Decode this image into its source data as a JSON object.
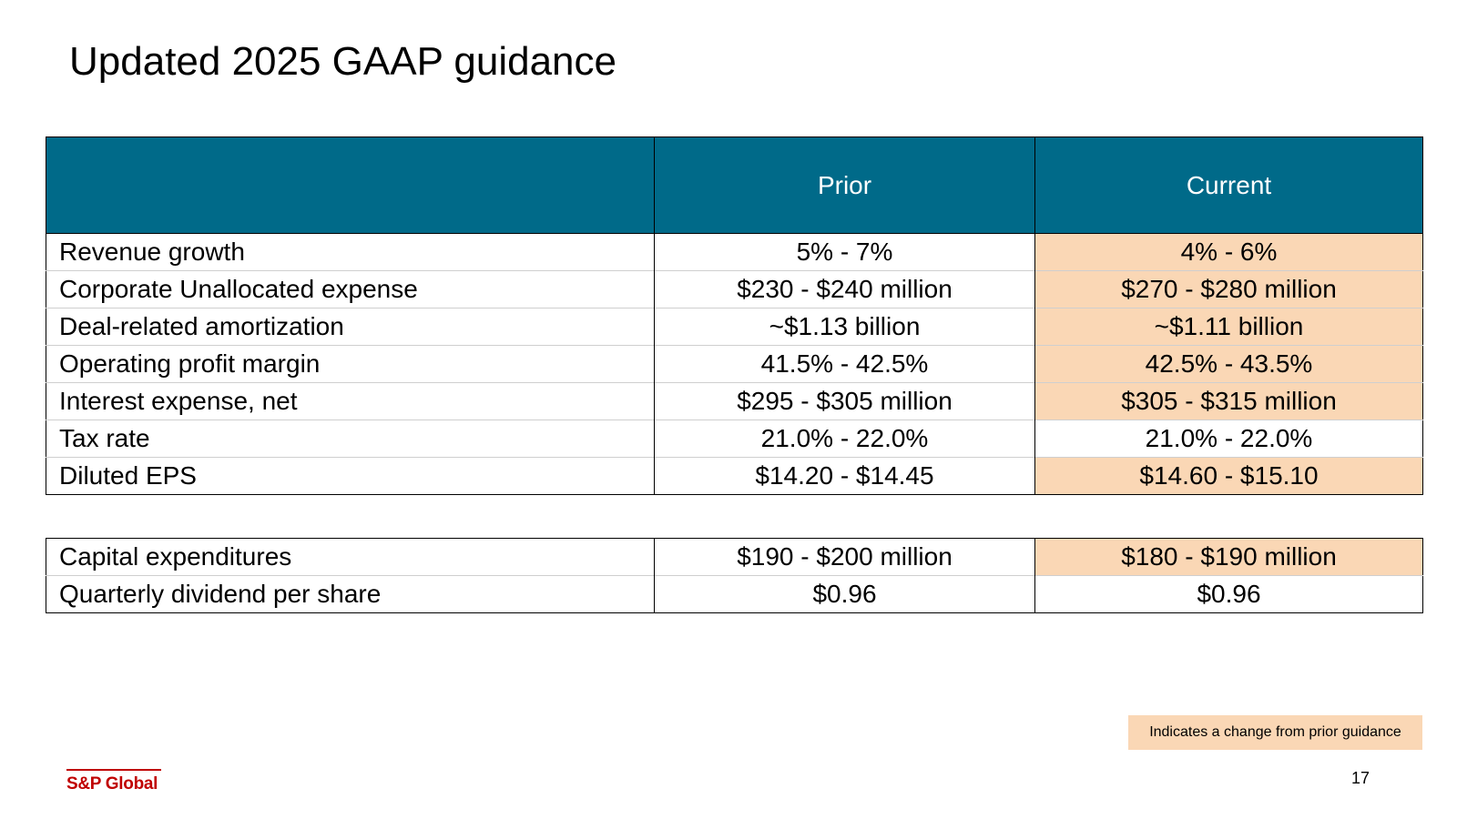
{
  "title": "Updated 2025 GAAP guidance",
  "table": {
    "header": [
      "",
      "Prior",
      "Current"
    ],
    "rows": [
      {
        "label": "Revenue growth",
        "prior": "5% - 7%",
        "current": "4% - 6%",
        "changed": true
      },
      {
        "label": "Corporate Unallocated expense",
        "prior": "$230 - $240 million",
        "current": "$270 - $280 million",
        "changed": true
      },
      {
        "label": "Deal-related amortization",
        "prior": "~$1.13 billion",
        "current": "~$1.11 billion",
        "changed": true
      },
      {
        "label": "Operating profit margin",
        "prior": "41.5% - 42.5%",
        "current": "42.5% - 43.5%",
        "changed": true
      },
      {
        "label": "Interest expense, net",
        "prior": "$295 - $305 million",
        "current": "$305 - $315 million",
        "changed": true
      },
      {
        "label": "Tax rate",
        "prior": "21.0% - 22.0%",
        "current": "21.0% - 22.0%",
        "changed": false
      },
      {
        "label": "Diluted EPS",
        "prior": "$14.20 - $14.45",
        "current": "$14.60 - $15.10",
        "changed": true
      }
    ]
  },
  "secondary_table": {
    "rows": [
      {
        "label": "Capital expenditures",
        "prior": "$190 - $200 million",
        "current": "$180 - $190 million",
        "changed": true
      },
      {
        "label": "Quarterly dividend per share",
        "prior": "$0.96",
        "current": "$0.96",
        "changed": false
      }
    ]
  },
  "legend": {
    "text": "Indicates a change from prior guidance",
    "color": "#fad7b5"
  },
  "header_color": "#006a89",
  "brand": {
    "logo_text": "S&P Global",
    "color": "#c00000"
  },
  "page_number": "17"
}
